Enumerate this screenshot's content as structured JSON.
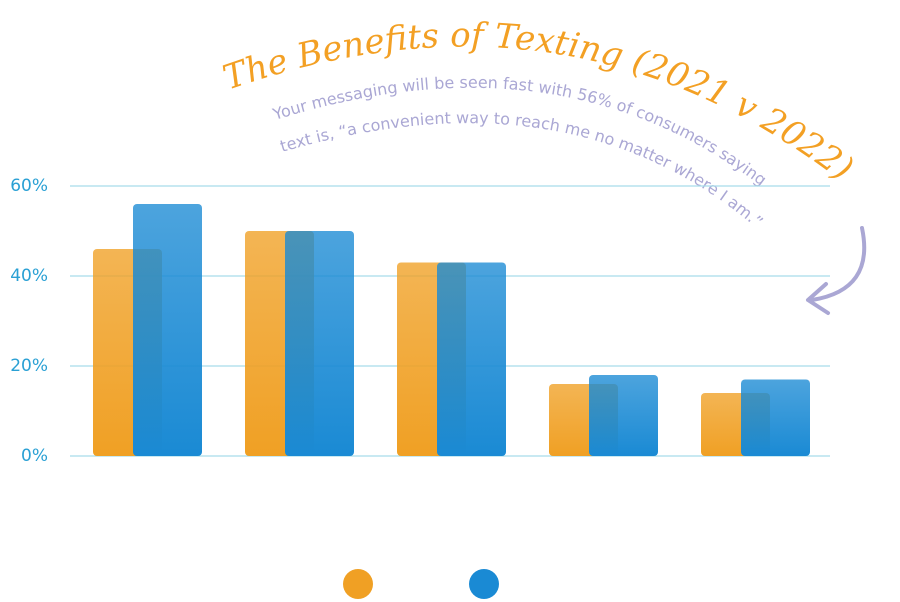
{
  "chart_data": {
    "type": "bar",
    "title": "The Benefits of Texting (2021 v 2022)",
    "subtitle": [
      "Your messaging will be seen fast with 56% of consumers saying",
      "text is, “a convenient way to reach me no matter where I am.”"
    ],
    "categories": [
      null,
      null,
      null,
      null,
      null
    ],
    "series": [
      {
        "color": "#f0a024",
        "values": [
          46,
          50,
          43,
          16,
          14
        ]
      },
      {
        "color": "#1a8ad4",
        "values": [
          56,
          50,
          43,
          18,
          17
        ]
      }
    ],
    "ylim": [
      0,
      60
    ],
    "yticks": [
      {
        "value": 0,
        "label": "0%"
      },
      {
        "value": 20,
        "label": "20%"
      },
      {
        "value": 40,
        "label": "40%"
      },
      {
        "value": 60,
        "label": "60%"
      }
    ],
    "grid": true
  }
}
